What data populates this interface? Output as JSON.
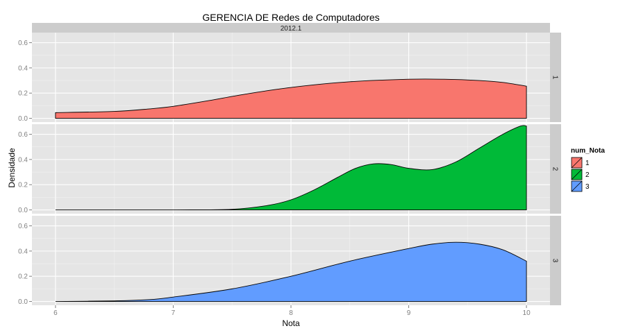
{
  "chart_data": {
    "type": "area",
    "title": "GERENCIA DE Redes de Computadores",
    "facet_column_label": "2012.1",
    "xlabel": "Nota",
    "ylabel": "Densidade",
    "xlim": [
      5.8,
      10.2
    ],
    "ylim": [
      -0.03,
      0.68
    ],
    "x_ticks": [
      6,
      7,
      8,
      9,
      10
    ],
    "x_tick_labels": [
      "6",
      "7",
      "8",
      "9",
      "10"
    ],
    "y_ticks": [
      0,
      0.2,
      0.4,
      0.6
    ],
    "y_tick_labels": [
      "0.0",
      "0.2",
      "0.4",
      "0.6"
    ],
    "grid": true,
    "legend": {
      "title": "num_Nota",
      "position": "right",
      "entries": [
        "1",
        "2",
        "3"
      ]
    },
    "series": [
      {
        "name": "1",
        "facet_row_label": "1",
        "color": "#F8766D",
        "x": [
          6.0,
          6.5,
          6.8,
          7.0,
          7.3,
          7.6,
          8.0,
          8.5,
          9.0,
          9.3,
          9.6,
          9.8,
          10.0
        ],
        "y": [
          0.045,
          0.055,
          0.075,
          0.095,
          0.14,
          0.19,
          0.245,
          0.29,
          0.31,
          0.31,
          0.3,
          0.285,
          0.255
        ]
      },
      {
        "name": "2",
        "facet_row_label": "2",
        "color": "#00BA38",
        "x": [
          6.0,
          7.0,
          7.5,
          7.8,
          8.0,
          8.2,
          8.4,
          8.55,
          8.7,
          8.85,
          9.0,
          9.2,
          9.4,
          9.6,
          9.8,
          9.95,
          10.0
        ],
        "y": [
          0.0,
          0.0,
          0.005,
          0.035,
          0.08,
          0.16,
          0.26,
          0.33,
          0.365,
          0.36,
          0.33,
          0.32,
          0.38,
          0.49,
          0.6,
          0.665,
          0.665
        ]
      },
      {
        "name": "3",
        "facet_row_label": "3",
        "color": "#619CFF",
        "x": [
          6.0,
          6.5,
          6.8,
          7.0,
          7.5,
          8.0,
          8.5,
          9.0,
          9.2,
          9.4,
          9.6,
          9.8,
          10.0
        ],
        "y": [
          0.0,
          0.005,
          0.015,
          0.035,
          0.1,
          0.2,
          0.32,
          0.42,
          0.455,
          0.47,
          0.455,
          0.41,
          0.32
        ]
      }
    ]
  }
}
